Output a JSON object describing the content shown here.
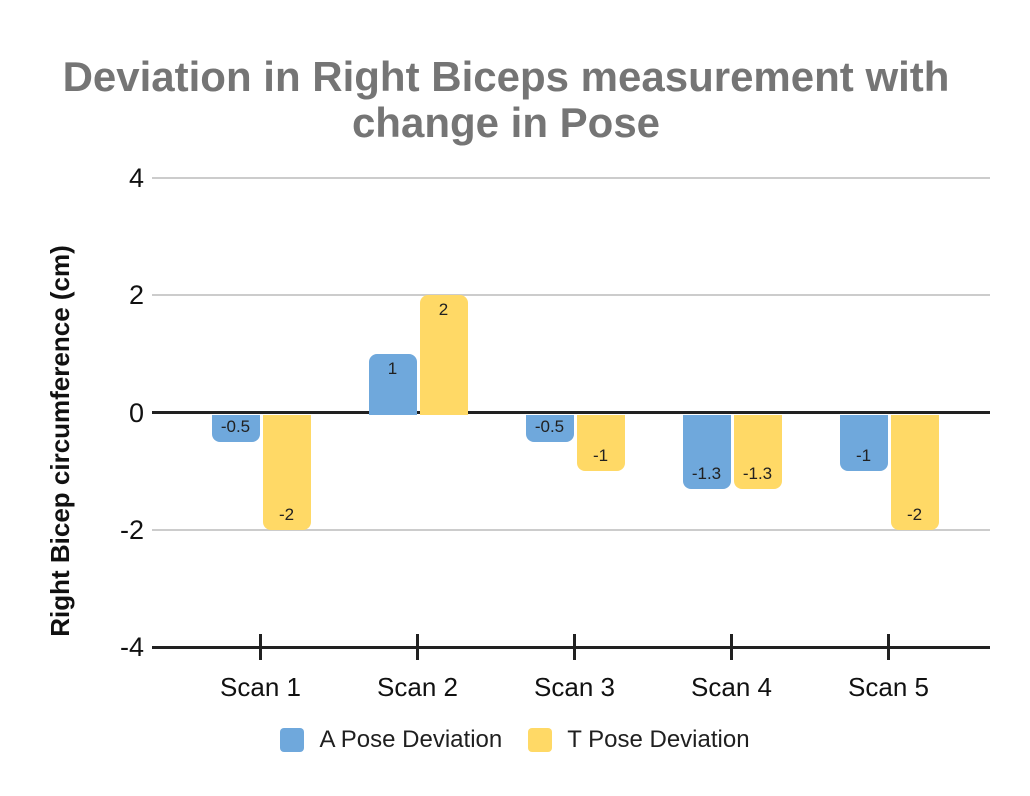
{
  "chart_data": {
    "type": "bar",
    "title": "Deviation in Right Biceps measurement with change in Pose",
    "title_lines": [
      "Deviation in Right Biceps measurement with",
      "change in Pose"
    ],
    "xlabel": "",
    "ylabel": "Right Bicep circumference (cm)",
    "categories": [
      "Scan 1",
      "Scan 2",
      "Scan 3",
      "Scan 4",
      "Scan 5"
    ],
    "series": [
      {
        "name": "A Pose Deviation",
        "color": "#6FA8DC",
        "values": [
          -0.5,
          1,
          -0.5,
          -1.3,
          -1
        ]
      },
      {
        "name": "T Pose Deviation",
        "color": "#FFD966",
        "values": [
          -2,
          2,
          -1,
          -1.3,
          -2
        ]
      }
    ],
    "y_ticks": [
      4,
      2,
      0,
      -2,
      -4
    ],
    "ylim": [
      -4,
      4
    ],
    "grid": "horizontal",
    "bar_value_labels_shown": true,
    "legend_position": "bottom",
    "colors": {
      "title_text": "#757575",
      "axis_line": "#212121",
      "gridline": "#cccccc",
      "series_a": "#6FA8DC",
      "series_t": "#FFD966",
      "label_text": "#212121"
    }
  }
}
